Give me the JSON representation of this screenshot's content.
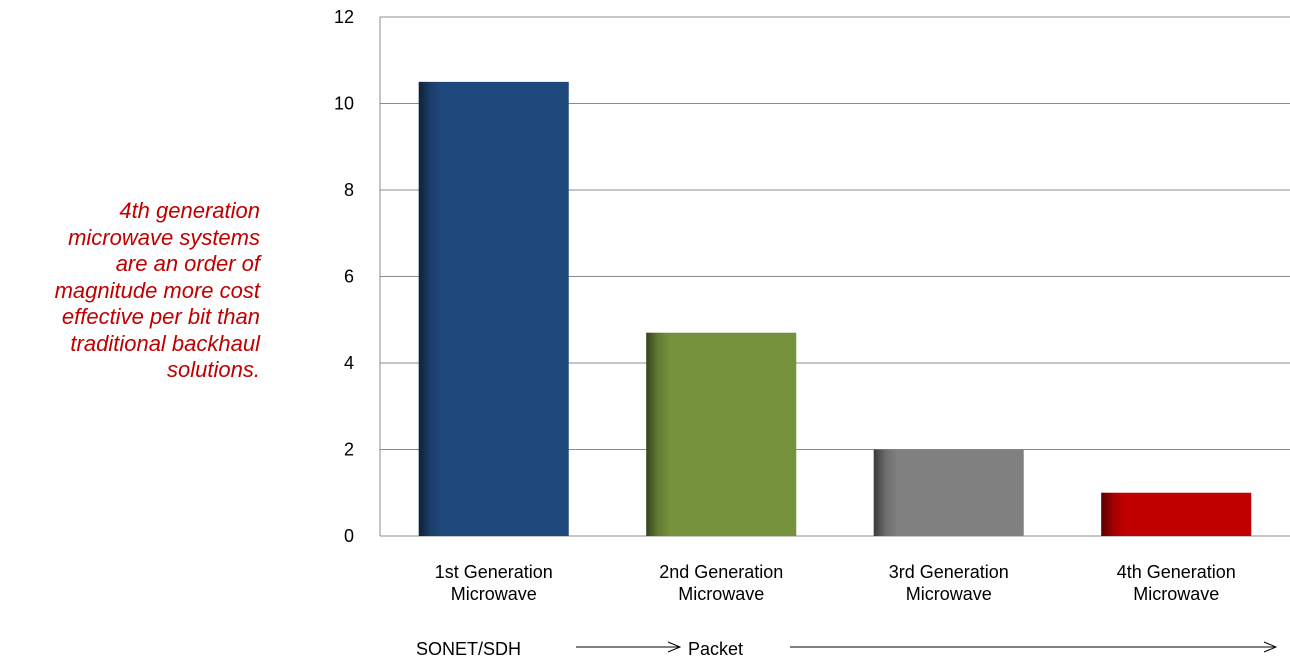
{
  "annotation": {
    "text": "4th generation\nmicrowave systems\nare an order of\nmagnitude more cost\neffective per bit than\ntraditional backhaul\nsolutions.",
    "color": "#c00000"
  },
  "chart_data": {
    "type": "bar",
    "title": "",
    "xlabel": "",
    "ylabel": "",
    "categories": [
      [
        "1st Generation",
        "Microwave"
      ],
      [
        "2nd Generation",
        "Microwave"
      ],
      [
        "3rd Generation",
        "Microwave"
      ],
      [
        "4th Generation",
        "Microwave"
      ]
    ],
    "values": [
      10.5,
      4.7,
      2.0,
      1.0
    ],
    "colors": [
      "#1f497d",
      "#76923c",
      "#808080",
      "#c00000"
    ],
    "ylim": [
      0,
      12
    ],
    "yticks": [
      0,
      2,
      4,
      6,
      8,
      10,
      12
    ],
    "grid": true,
    "legend": "none"
  },
  "technology_arrow": {
    "labels": [
      "SONET/SDH",
      "Packet"
    ]
  }
}
